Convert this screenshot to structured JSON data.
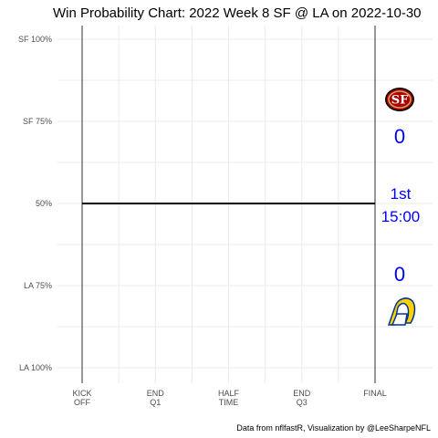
{
  "chart_data": {
    "type": "line",
    "title": "Win Probability Chart: 2022 Week 8 SF @ LA on 2022-10-30",
    "x_ticks": [
      "KICK\nOFF",
      "END\nQ1",
      "HALF\nTIME",
      "END\nQ3",
      "FINAL"
    ],
    "y_ticks": [
      "SF 100%",
      "SF 75%",
      "50%",
      "LA 75%",
      "LA 100%"
    ],
    "y_values": [
      1.0,
      0.75,
      0.5,
      0.25,
      0.0
    ],
    "ylim": [
      0,
      1
    ],
    "xlim": [
      0,
      1
    ],
    "grid": true,
    "series": [
      {
        "x": [
          0,
          1
        ],
        "y": [
          0.5,
          0.5
        ],
        "color": "#000000"
      }
    ],
    "away_team": {
      "abbr": "SF",
      "score": "0",
      "logo": "sf-49ers-logo",
      "color": "#AA0000"
    },
    "home_team": {
      "abbr": "LA",
      "score": "0",
      "logo": "la-rams-logo",
      "color": "#003594"
    },
    "game_state": {
      "quarter": "1st",
      "clock": "15:00"
    },
    "annotation_color": "#0000FF",
    "caption": "Data from nflfastR, Visualization by @LeeSharpeNFL"
  }
}
